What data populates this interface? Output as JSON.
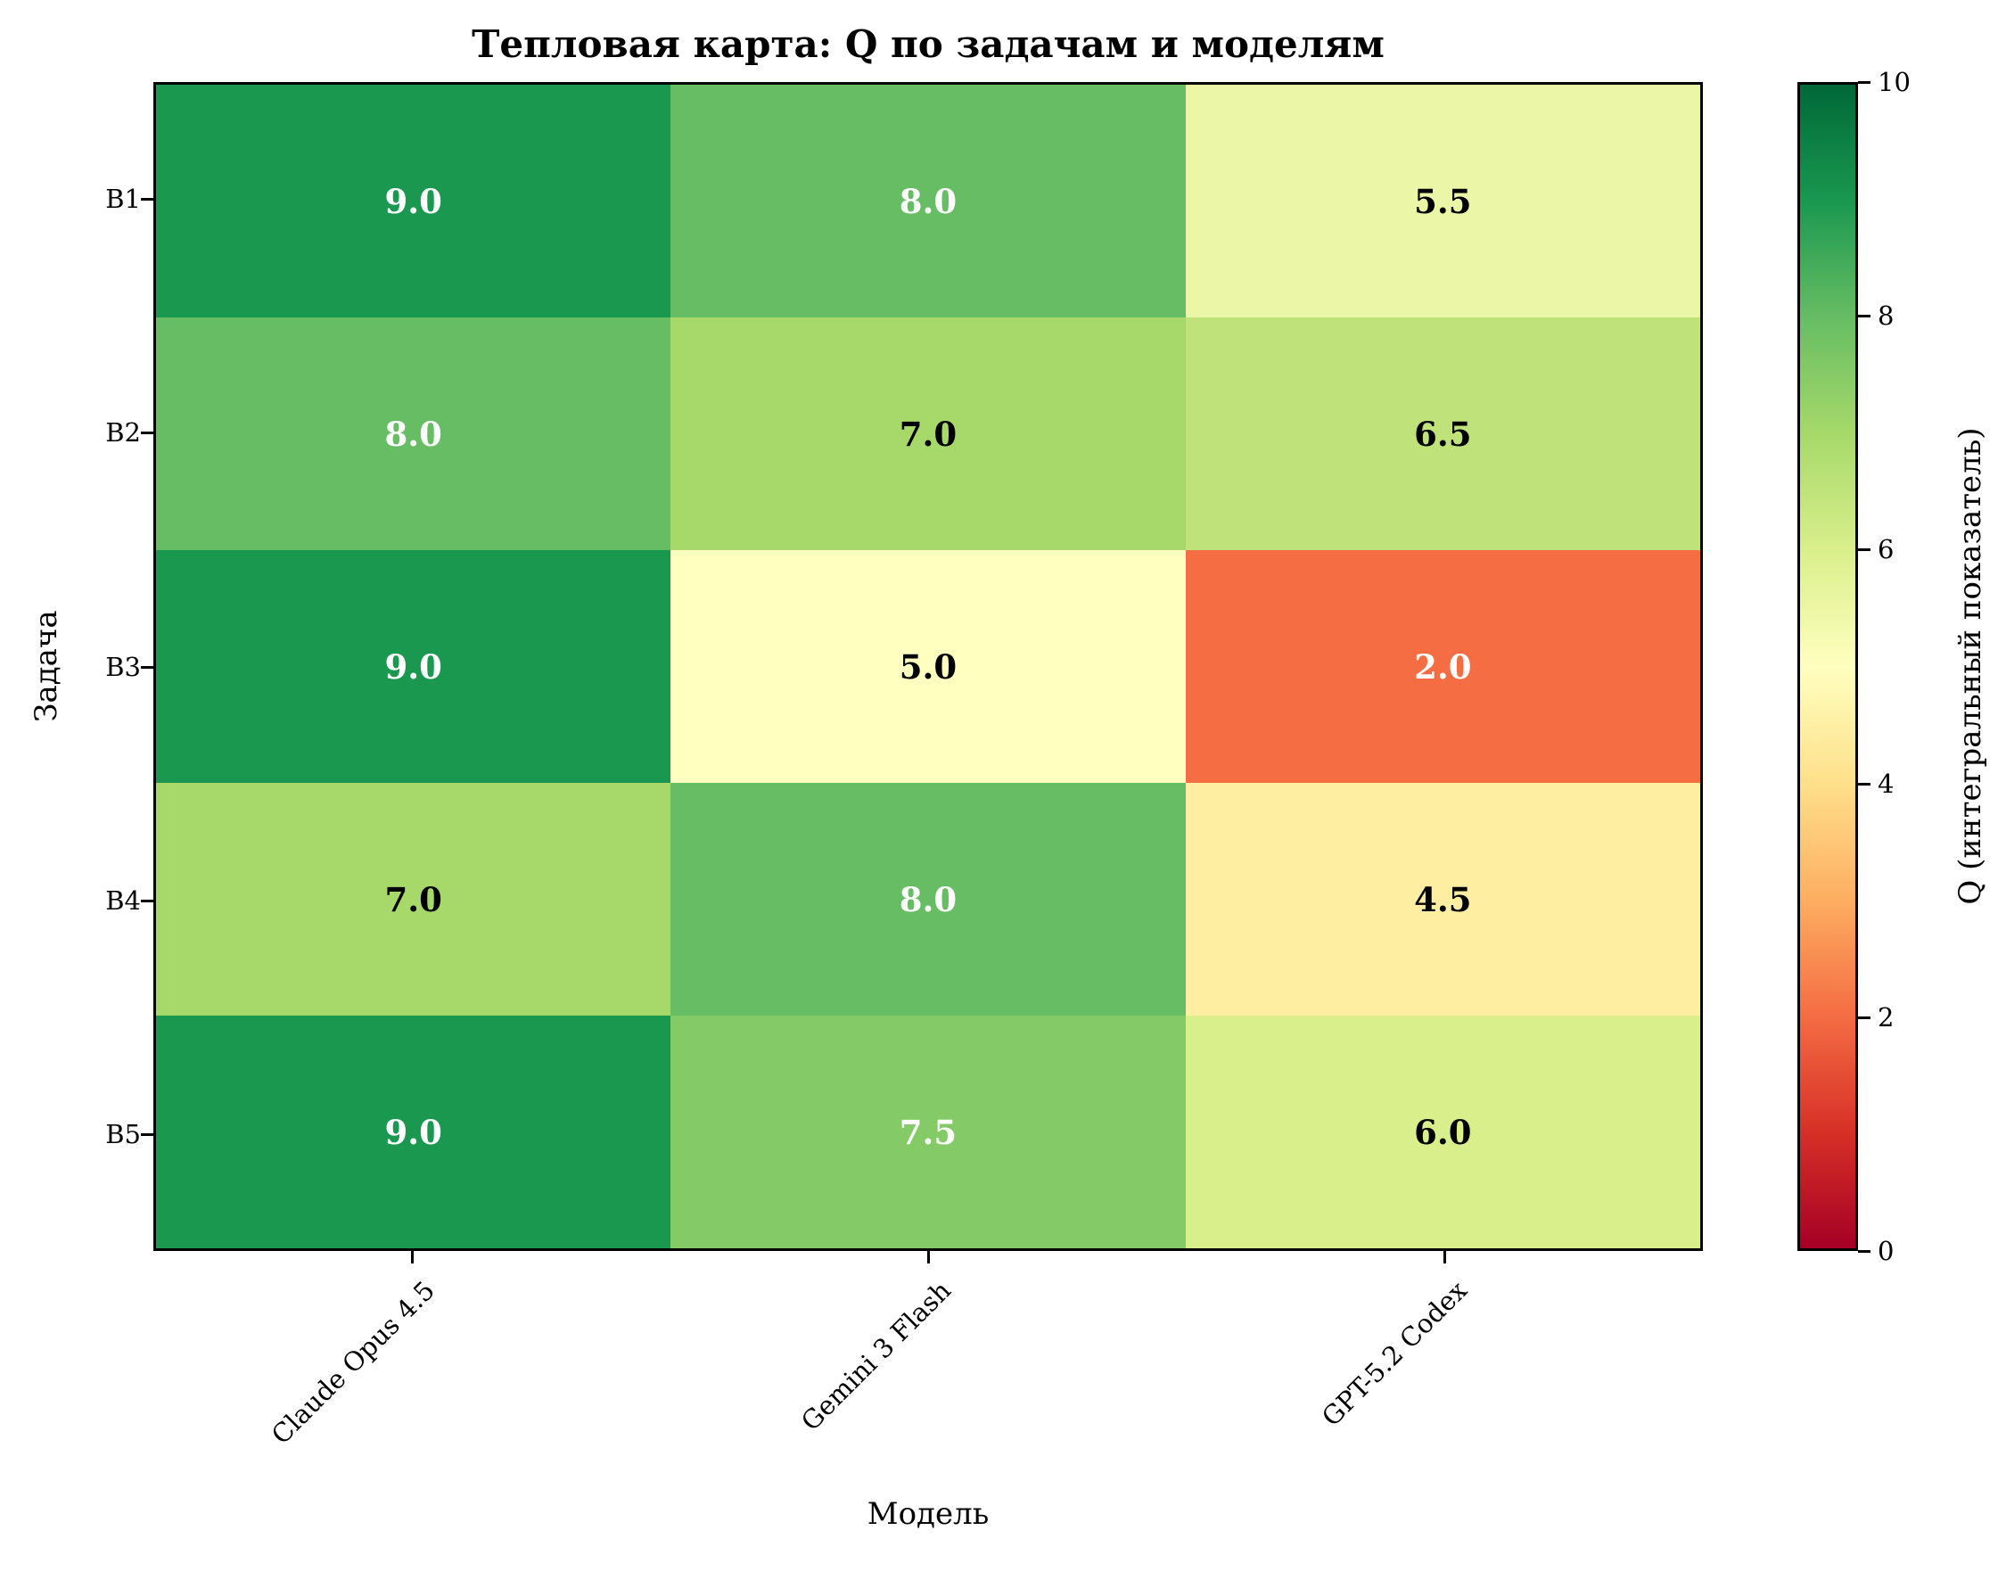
{
  "chart_data": {
    "type": "heatmap",
    "title": "Тепловая карта: Q по задачам и моделям",
    "xlabel": "Модель",
    "ylabel": "Задача",
    "x_categories": [
      "Claude Opus 4.5",
      "Gemini 3 Flash",
      "GPT-5.2 Codex"
    ],
    "y_categories": [
      "B1",
      "B2",
      "B3",
      "B4",
      "B5"
    ],
    "values": [
      [
        9.0,
        8.0,
        5.5
      ],
      [
        8.0,
        7.0,
        6.5
      ],
      [
        9.0,
        5.0,
        2.0
      ],
      [
        7.0,
        8.0,
        4.5
      ],
      [
        9.0,
        7.5,
        6.0
      ]
    ],
    "value_labels": [
      [
        "9.0",
        "8.0",
        "5.5"
      ],
      [
        "8.0",
        "7.0",
        "6.5"
      ],
      [
        "9.0",
        "5.0",
        "2.0"
      ],
      [
        "7.0",
        "8.0",
        "4.5"
      ],
      [
        "9.0",
        "7.5",
        "6.0"
      ]
    ],
    "cell_colors": [
      [
        "#1a9850",
        "#66bd63",
        "#ebf7a6"
      ],
      [
        "#66bd63",
        "#a6d96a",
        "#bfe37a"
      ],
      [
        "#1a9850",
        "#ffffbf",
        "#f46d43"
      ],
      [
        "#a6d96a",
        "#66bd63",
        "#feeea1"
      ],
      [
        "#1a9850",
        "#84ca66",
        "#d9ef8b"
      ]
    ],
    "text_colors": [
      [
        "#ffffff",
        "#ffffff",
        "#000000"
      ],
      [
        "#ffffff",
        "#000000",
        "#000000"
      ],
      [
        "#ffffff",
        "#000000",
        "#ffffff"
      ],
      [
        "#000000",
        "#ffffff",
        "#000000"
      ],
      [
        "#ffffff",
        "#ffffff",
        "#000000"
      ]
    ],
    "colormap": "RdYlGn",
    "colorbar": {
      "label": "Q (интегральный показатель)",
      "range": [
        0,
        10
      ],
      "ticks": [
        "0",
        "2",
        "4",
        "6",
        "8",
        "10"
      ],
      "gradient": [
        "#a50026",
        "#d73027",
        "#f46d43",
        "#fdae61",
        "#fee08b",
        "#ffffbf",
        "#d9ef8b",
        "#a6d96a",
        "#66bd63",
        "#1a9850",
        "#006837"
      ]
    }
  }
}
